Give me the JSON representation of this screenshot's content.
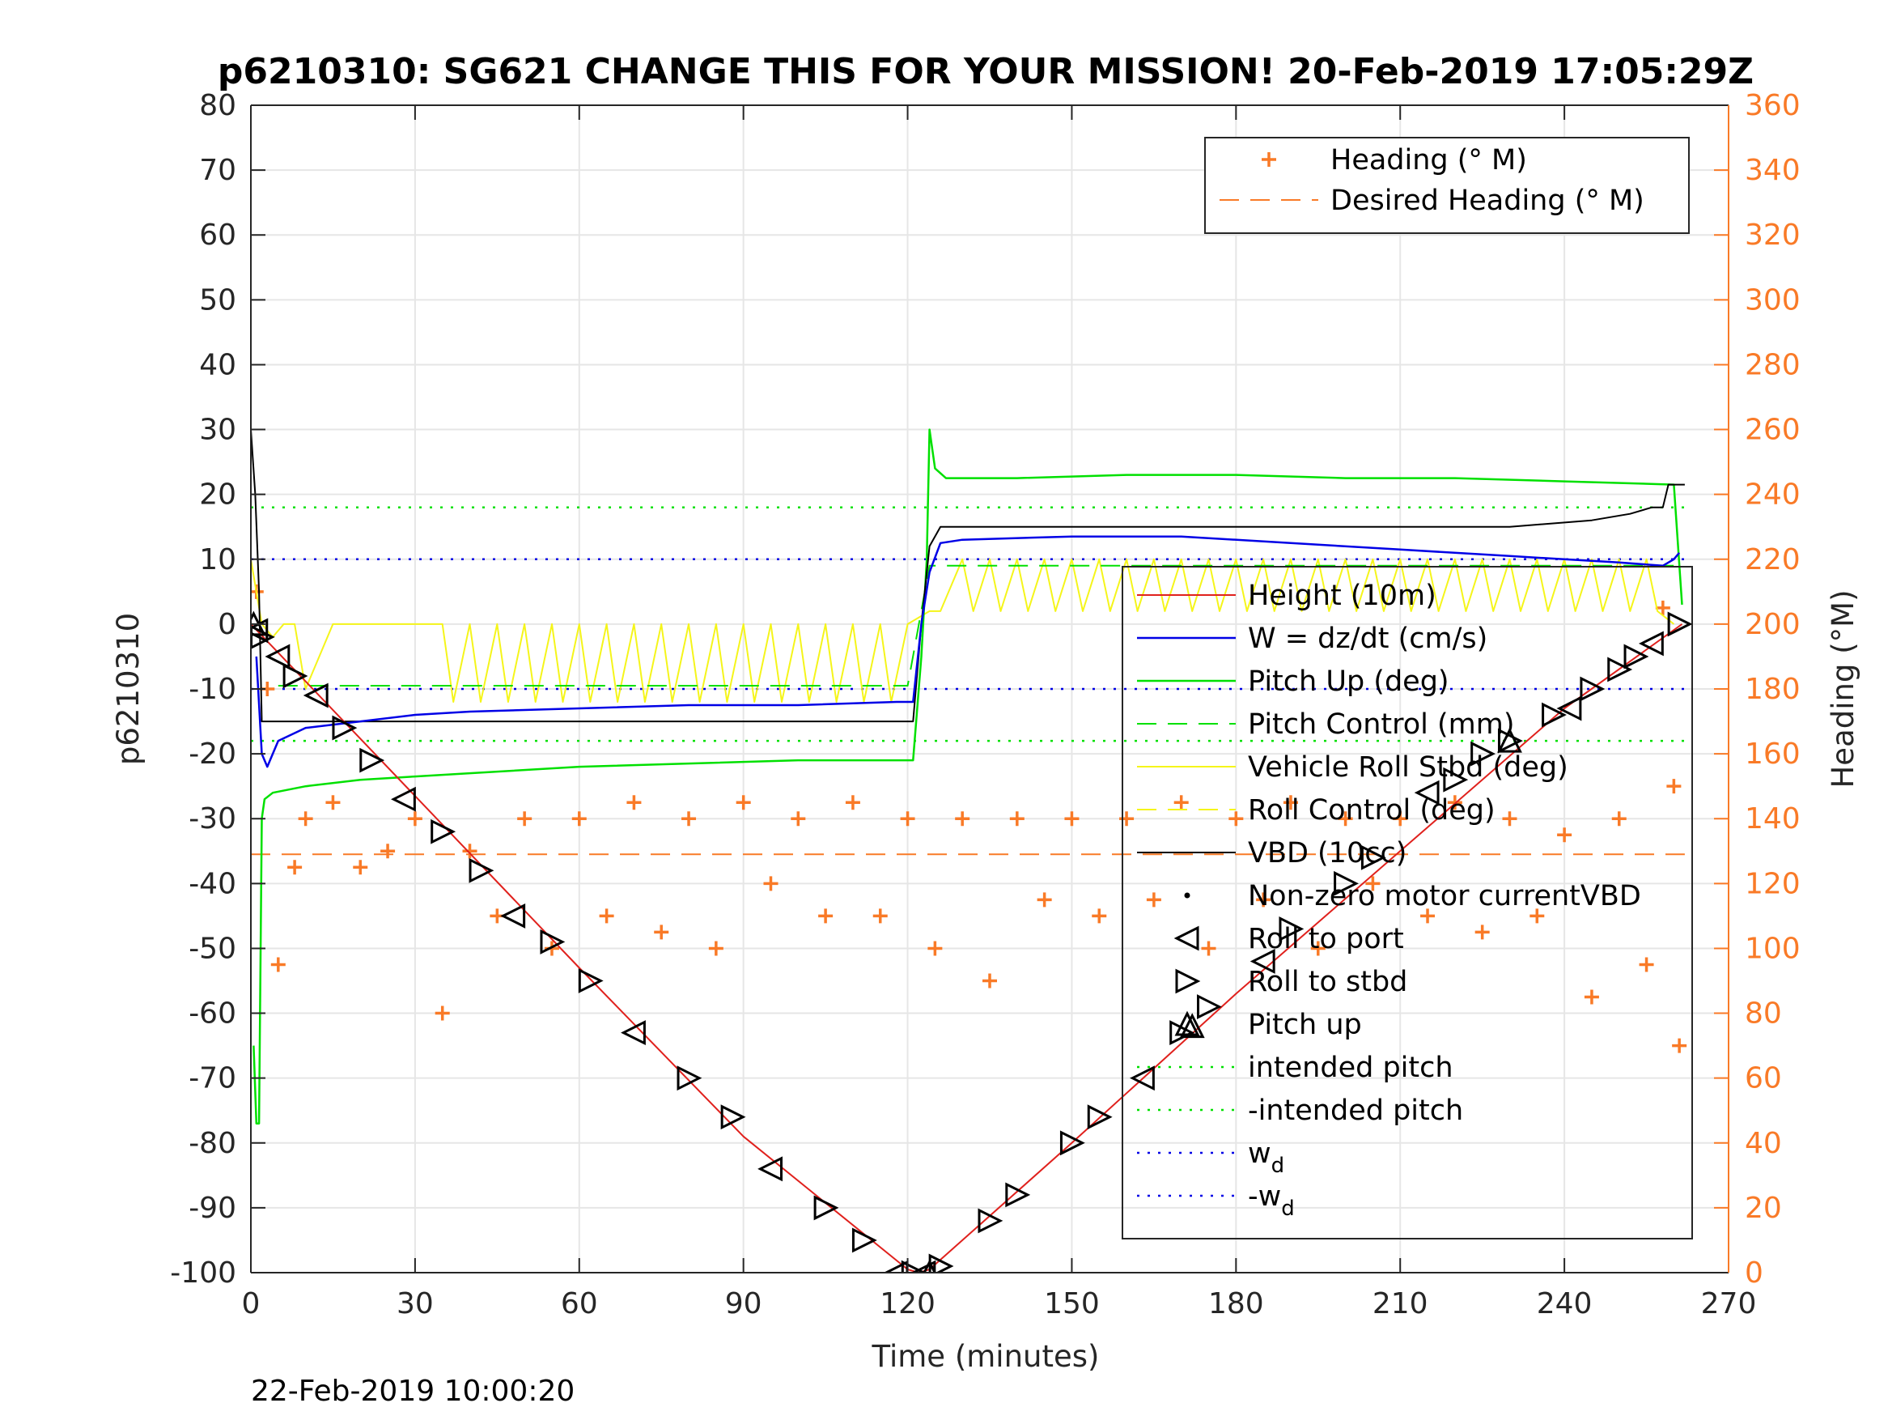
{
  "chart_data": {
    "type": "line",
    "title": "p6210310: SG621 CHANGE THIS FOR YOUR MISSION! 20-Feb-2019 17:05:29Z",
    "xlabel": "Time (minutes)",
    "ylabel": "p6210310",
    "y2label": "Heading (°M)",
    "footer": "22-Feb-2019 10:00:20",
    "xlim": [
      0,
      270
    ],
    "ylim": [
      -100,
      80
    ],
    "y2lim": [
      0,
      360
    ],
    "x_ticks": [
      0,
      30,
      60,
      90,
      120,
      150,
      180,
      210,
      240,
      270
    ],
    "y_ticks": [
      -100,
      -90,
      -80,
      -70,
      -60,
      -50,
      -40,
      -30,
      -20,
      -10,
      0,
      10,
      20,
      30,
      40,
      50,
      60,
      70,
      80
    ],
    "y2_ticks": [
      0,
      20,
      40,
      60,
      80,
      100,
      120,
      140,
      160,
      180,
      200,
      220,
      240,
      260,
      280,
      300,
      320,
      340,
      360
    ],
    "grid": true,
    "colors": {
      "axis_right": "#f97a27",
      "height": "#e0211d",
      "w": "#0000e6",
      "pitch": "#00e000",
      "roll": "#f5f51a",
      "vbd": "#000000",
      "heading": "#f97a27",
      "wd": "#0000e6",
      "grid": "#e6e6e6"
    },
    "legend_heading": {
      "placement": "top-right",
      "entries": [
        "Heading (° M)",
        "Desired Heading (° M)"
      ]
    },
    "legend_main": {
      "placement": "right",
      "entries": [
        {
          "label": "Height (10m)",
          "sub": ""
        },
        {
          "label": "W = dz/dt (cm/s)",
          "sub": ""
        },
        {
          "label": "Pitch Up (deg)",
          "sub": ""
        },
        {
          "label": "Pitch Control (mm)",
          "sub": ""
        },
        {
          "label": "Vehicle Roll Stbd (deg)",
          "sub": ""
        },
        {
          "label": "Roll Control (deg)",
          "sub": ""
        },
        {
          "label": "VBD (10cc)",
          "sub": ""
        },
        {
          "label": "Non-zero motor currentVBD",
          "sub": ""
        },
        {
          "label": "Roll to port",
          "sub": ""
        },
        {
          "label": "Roll to stbd",
          "sub": ""
        },
        {
          "label": "Pitch up",
          "sub": ""
        },
        {
          "label": "intended pitch",
          "sub": ""
        },
        {
          "label": "-intended pitch",
          "sub": ""
        },
        {
          "label": "w",
          "sub": "d"
        },
        {
          "label": "-w",
          "sub": "d"
        }
      ]
    },
    "series": [
      {
        "name": "Height (10m)",
        "axis": "left",
        "x": [
          0,
          30,
          60,
          90,
          120,
          122,
          124,
          150,
          180,
          210,
          240,
          261.5
        ],
        "y": [
          0,
          -26.5,
          -53,
          -79,
          -99.5,
          -100,
          -99.5,
          -80,
          -57,
          -35,
          -13,
          0
        ]
      },
      {
        "name": "W = dz/dt (cm/s)",
        "axis": "left",
        "x": [
          1,
          2,
          3,
          5,
          10,
          20,
          30,
          40,
          60,
          80,
          100,
          118,
          121,
          122.5,
          124,
          126,
          130,
          150,
          170,
          190,
          210,
          230,
          250,
          258,
          260,
          261
        ],
        "y": [
          -5,
          -20,
          -22,
          -18,
          -16,
          -15,
          -14,
          -13.5,
          -13,
          -12.5,
          -12.5,
          -12,
          -12,
          0,
          8,
          12.5,
          13,
          13.5,
          13.5,
          12.5,
          11.5,
          10.5,
          9.5,
          9,
          10,
          11
        ]
      },
      {
        "name": "Pitch Up (deg)",
        "axis": "left",
        "x": [
          0.5,
          1,
          1.5,
          2,
          2.5,
          4,
          10,
          20,
          30,
          40,
          60,
          80,
          100,
          121,
          122.5,
          123.5,
          124,
          125,
          127,
          140,
          160,
          180,
          200,
          220,
          240,
          260,
          261.5
        ],
        "y": [
          -65,
          -77,
          -77,
          -30,
          -27,
          -26,
          -25,
          -24,
          -23.5,
          -23,
          -22,
          -21.5,
          -21,
          -21,
          -5,
          10,
          30,
          24,
          22.5,
          22.5,
          23,
          23,
          22.5,
          22.5,
          22,
          21.5,
          3
        ]
      },
      {
        "name": "Pitch Control (mm)",
        "axis": "left",
        "x": [
          5,
          120,
          124,
          260
        ],
        "y": [
          -9.5,
          -9.5,
          9,
          9
        ]
      },
      {
        "name": "Vehicle Roll Stbd (deg)",
        "axis": "left",
        "x": [
          0,
          2,
          4,
          6,
          8,
          10,
          15,
          18,
          35,
          37,
          40,
          42,
          45,
          47,
          50,
          52,
          55,
          57,
          60,
          62,
          65,
          67,
          70,
          72,
          75,
          77,
          80,
          82,
          85,
          87,
          90,
          92,
          95,
          97,
          100,
          102,
          105,
          107,
          110,
          112,
          115,
          117,
          120,
          124,
          126,
          130,
          132,
          135,
          137,
          140,
          142,
          145,
          147,
          150,
          152,
          155,
          157,
          160,
          162,
          165,
          167,
          170,
          172,
          175,
          177,
          180,
          182,
          185,
          187,
          190,
          192,
          195,
          197,
          200,
          202,
          205,
          207,
          210,
          212,
          215,
          217,
          220,
          222,
          225,
          227,
          230,
          232,
          235,
          237,
          240,
          242,
          245,
          247,
          250,
          252,
          255,
          257,
          260
        ],
        "y": [
          10,
          0,
          -2,
          0,
          0,
          -10,
          0,
          0,
          0,
          -12,
          0,
          -12,
          0,
          -12,
          0,
          -12,
          0,
          -12,
          0,
          -12,
          0,
          -12,
          0,
          -12,
          0,
          -12,
          0,
          -12,
          0,
          -12,
          0,
          -12,
          0,
          -12,
          0,
          -12,
          0,
          -12,
          0,
          -12,
          0,
          -12,
          0,
          2,
          2,
          10,
          2,
          10,
          2,
          10,
          2,
          10,
          2,
          10,
          2,
          10,
          2,
          10,
          2,
          10,
          2,
          10,
          2,
          10,
          2,
          10,
          2,
          10,
          2,
          10,
          2,
          10,
          2,
          10,
          2,
          10,
          2,
          10,
          2,
          10,
          2,
          10,
          2,
          10,
          2,
          10,
          2,
          10,
          2,
          10,
          2,
          10,
          2,
          10,
          2,
          10,
          2,
          0
        ]
      },
      {
        "name": "VBD (10cc)",
        "axis": "left",
        "x": [
          0,
          0.8,
          1.5,
          2,
          60,
          120,
          121,
          122.5,
          124,
          126,
          200,
          230,
          245,
          252,
          256,
          258,
          259,
          260,
          262
        ],
        "y": [
          30,
          20,
          5,
          -15,
          -15,
          -15,
          -15,
          0,
          12,
          15,
          15,
          15,
          16,
          17,
          18,
          18,
          21.5,
          21.5,
          21.5
        ]
      },
      {
        "name": "Heading (° M)",
        "axis": "right",
        "style": "markers",
        "x": [
          1,
          3,
          5,
          8,
          10,
          15,
          20,
          25,
          30,
          35,
          40,
          45,
          50,
          55,
          60,
          65,
          70,
          75,
          80,
          85,
          90,
          95,
          100,
          105,
          110,
          115,
          120,
          125,
          130,
          135,
          140,
          145,
          150,
          155,
          160,
          165,
          170,
          175,
          180,
          185,
          190,
          195,
          200,
          205,
          210,
          215,
          220,
          225,
          230,
          235,
          240,
          245,
          250,
          255,
          258,
          260,
          261
        ],
        "y": [
          210,
          180,
          95,
          125,
          140,
          145,
          125,
          130,
          140,
          80,
          130,
          110,
          140,
          100,
          140,
          110,
          145,
          105,
          140,
          100,
          145,
          120,
          140,
          110,
          145,
          110,
          140,
          100,
          140,
          90,
          140,
          115,
          140,
          110,
          140,
          115,
          145,
          100,
          140,
          115,
          145,
          100,
          140,
          120,
          140,
          110,
          145,
          105,
          140,
          110,
          135,
          85,
          140,
          95,
          205,
          150,
          70
        ]
      },
      {
        "name": "Desired Heading (° M)",
        "axis": "right",
        "x": [
          0,
          262
        ],
        "y": [
          129,
          129
        ]
      },
      {
        "name": "intended pitch",
        "axis": "left",
        "x": [
          0,
          262
        ],
        "y": [
          18,
          18
        ]
      },
      {
        "name": "-intended pitch",
        "axis": "left",
        "x": [
          0,
          262
        ],
        "y": [
          -18,
          -18
        ]
      },
      {
        "name": "w_d",
        "axis": "left",
        "x": [
          0,
          262
        ],
        "y": [
          10,
          10
        ]
      },
      {
        "name": "-w_d",
        "axis": "left",
        "x": [
          0,
          262
        ],
        "y": [
          -10,
          -10
        ]
      }
    ],
    "markers": {
      "roll_to_port": {
        "x": [
          1,
          5,
          12,
          28,
          48,
          70,
          95,
          118,
          123,
          163,
          185,
          215,
          241,
          256
        ],
        "y": [
          -1,
          -5,
          -11,
          -27,
          -45,
          -63,
          -84,
          -100,
          -100,
          -70,
          -52,
          -26,
          -13,
          -3
        ]
      },
      "roll_to_stbd": {
        "x": [
          2,
          8,
          17,
          22,
          35,
          42,
          55,
          62,
          80,
          88,
          105,
          112,
          121,
          126,
          135,
          140,
          150,
          155,
          170,
          175,
          190,
          200,
          205,
          220,
          225,
          230,
          238,
          245,
          250,
          253,
          261
        ],
        "y": [
          -2,
          -8,
          -16,
          -21,
          -32,
          -38,
          -49,
          -55,
          -70,
          -76,
          -90,
          -95,
          -100,
          -99,
          -92,
          -88,
          -80,
          -76,
          -63,
          -59,
          -47,
          -40,
          -36,
          -24,
          -20,
          -18,
          -14,
          -10,
          -7,
          -5,
          0
        ]
      },
      "pitch_up": {
        "x": [
          0.5,
          124,
          172,
          230
        ],
        "y": [
          0,
          -100,
          -62,
          -18
        ]
      }
    }
  }
}
